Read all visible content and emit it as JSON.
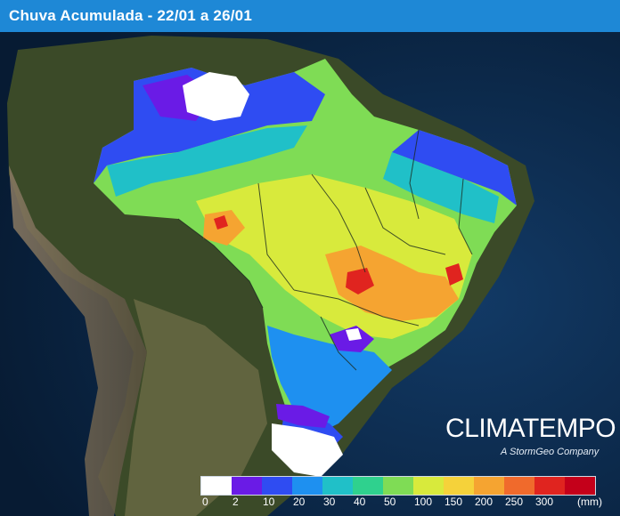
{
  "header": {
    "title": "Chuva Acumulada - 22/01 a 26/01"
  },
  "brand": {
    "logo": "CLIMATEMPO",
    "tagline": "A StormGeo Company"
  },
  "legend": {
    "unit": "(mm)",
    "stops": [
      {
        "label": "0",
        "color": "#ffffff"
      },
      {
        "label": "2",
        "color": "#6a1be6"
      },
      {
        "label": "10",
        "color": "#2f4cf2"
      },
      {
        "label": "20",
        "color": "#1e90f0"
      },
      {
        "label": "30",
        "color": "#20c0c8"
      },
      {
        "label": "40",
        "color": "#2fd18e"
      },
      {
        "label": "50",
        "color": "#7fdc55"
      },
      {
        "label": "100",
        "color": "#d8ea3c"
      },
      {
        "label": "150",
        "color": "#f5d23a"
      },
      {
        "label": "200",
        "color": "#f5a431"
      },
      {
        "label": "250",
        "color": "#f06a2c"
      },
      {
        "label": "300",
        "color": "#e0241f"
      },
      {
        "label": "",
        "color": "#c4001a"
      }
    ]
  },
  "colors": {
    "ocean": "#0c2746",
    "land": "#3c4a2a",
    "header": "#1e88d6"
  }
}
